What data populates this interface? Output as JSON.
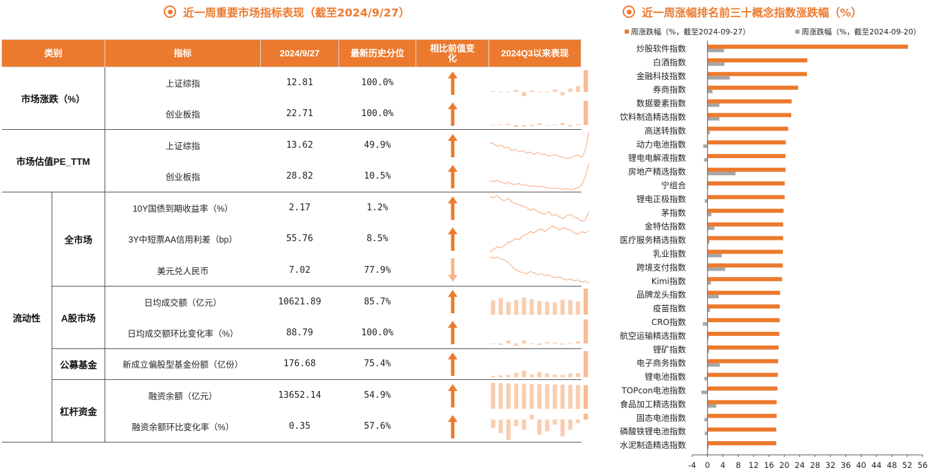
{
  "left_panel": {
    "title": "近一周重要市场指标表现（截至2024/9/27）",
    "headers": [
      "类别",
      "指标",
      "2024/9/27",
      "最新历史分位",
      "相比前值变化",
      "2024Q3以来表现"
    ],
    "groups": [
      {
        "category": "市场涨跌（%）",
        "subcategory": "",
        "rows": [
          {
            "indicator": "上证综指",
            "value": "12.81",
            "percentile": "100.0%",
            "change": "up"
          },
          {
            "indicator": "创业板指",
            "value": "22.71",
            "percentile": "100.0%",
            "change": "up"
          }
        ]
      },
      {
        "category": "市场估值PE_TTM",
        "subcategory": "",
        "rows": [
          {
            "indicator": "上证综指",
            "value": "13.62",
            "percentile": "49.9%",
            "change": "up"
          },
          {
            "indicator": "创业板指",
            "value": "28.82",
            "percentile": "10.5%",
            "change": "up"
          }
        ]
      },
      {
        "category": "流动性",
        "subcategory": "全市场",
        "rows": [
          {
            "indicator": "10Y国债到期收益率（%）",
            "value": "2.17",
            "percentile": "1.2%",
            "change": "up"
          },
          {
            "indicator": "3Y中短票AA信用利差（bp）",
            "value": "55.76",
            "percentile": "8.5%",
            "change": "up"
          },
          {
            "indicator": "美元兑人民币",
            "value": "7.02",
            "percentile": "77.9%",
            "change": "down"
          }
        ]
      },
      {
        "category": "流动性",
        "subcategory": "A股市场",
        "rows": [
          {
            "indicator": "日均成交额（亿元）",
            "value": "10621.89",
            "percentile": "85.7%",
            "change": "up"
          },
          {
            "indicator": "日均成交额环比变化率（%）",
            "value": "88.79",
            "percentile": "100.0%",
            "change": "up"
          }
        ]
      },
      {
        "category": "流动性",
        "subcategory": "公募基金",
        "rows": [
          {
            "indicator": "新成立偏股型基金份额（亿份）",
            "value": "176.68",
            "percentile": "75.4%",
            "change": "up"
          }
        ]
      },
      {
        "category": "流动性",
        "subcategory": "杠杆资金",
        "rows": [
          {
            "indicator": "融资余额（亿元）",
            "value": "13652.14",
            "percentile": "54.9%",
            "change": "up"
          },
          {
            "indicator": "融资余额环比变化率（%）",
            "value": "0.35",
            "percentile": "57.6%",
            "change": "up"
          }
        ]
      }
    ],
    "sparklines": [
      {
        "kind": "bar",
        "values": [
          0.5,
          0.2,
          -0.3,
          1.2,
          -2.5,
          0.8,
          0.3,
          -0.4,
          1.5,
          -2.0,
          2.0,
          3.5,
          12.81
        ]
      },
      {
        "kind": "bar",
        "values": [
          0.3,
          0.5,
          1.0,
          -2.0,
          -1.5,
          -1.0,
          1.5,
          -0.5,
          0.5,
          2.0,
          -1.5,
          1.0,
          22.71
        ]
      },
      {
        "kind": "line",
        "values": [
          12.9,
          12.8,
          12.6,
          12.7,
          12.5,
          12.55,
          12.3,
          12.4,
          12.2,
          12.3,
          12.1,
          12.2,
          12.0,
          12.15,
          12.0,
          12.05,
          11.9,
          11.95,
          12.0,
          11.85,
          11.8,
          11.7,
          11.75,
          11.9,
          12.0,
          11.8,
          12.3,
          13.62
        ]
      },
      {
        "kind": "line",
        "values": [
          24.5,
          24.3,
          24.6,
          24.2,
          23.9,
          24.1,
          23.7,
          23.6,
          23.8,
          23.4,
          23.5,
          23.1,
          23.3,
          23.0,
          23.2,
          22.9,
          22.8,
          22.6,
          22.7,
          22.5,
          22.4,
          22.6,
          22.3,
          22.5,
          22.8,
          23.4,
          25.5,
          28.82
        ]
      },
      {
        "kind": "line",
        "values": [
          2.28,
          2.27,
          2.29,
          2.26,
          2.25,
          2.27,
          2.24,
          2.23,
          2.22,
          2.21,
          2.2,
          2.18,
          2.19,
          2.17,
          2.16,
          2.15,
          2.17,
          2.14,
          2.15,
          2.13,
          2.12,
          2.14,
          2.15,
          2.13,
          2.12,
          2.1,
          2.11,
          2.17
        ]
      },
      {
        "kind": "line",
        "values": [
          40,
          42,
          44,
          43,
          45,
          47,
          48,
          50,
          49,
          52,
          53,
          55,
          54,
          56,
          57,
          55,
          57,
          59,
          58,
          56,
          58,
          57,
          56,
          54,
          53,
          55,
          54,
          55.76
        ]
      },
      {
        "kind": "line",
        "values": [
          7.27,
          7.26,
          7.27,
          7.25,
          7.24,
          7.22,
          7.18,
          7.15,
          7.13,
          7.12,
          7.11,
          7.13,
          7.12,
          7.1,
          7.11,
          7.09,
          7.1,
          7.08,
          7.07,
          7.08,
          7.06,
          7.05,
          7.06,
          7.04,
          7.05,
          7.03,
          7.04,
          7.02
        ]
      },
      {
        "kind": "bar",
        "values": [
          5800,
          6800,
          5200,
          6000,
          7000,
          6300,
          5600,
          5300,
          5000,
          6100,
          5900,
          5400,
          10621.89
        ]
      },
      {
        "kind": "bar",
        "values": [
          0.0,
          -5,
          10,
          -8,
          12,
          -3,
          -6,
          5,
          4,
          -4,
          3,
          8,
          88.79
        ]
      },
      {
        "kind": "bar",
        "values": [
          8,
          12,
          15,
          30,
          45,
          20,
          35,
          25,
          18,
          15,
          25,
          28,
          176.68
        ]
      },
      {
        "kind": "bar",
        "values": [
          15000,
          14800,
          14600,
          14500,
          14400,
          14300,
          14200,
          14100,
          14000,
          13900,
          13800,
          13750,
          13652.14
        ]
      },
      {
        "kind": "bar",
        "values": [
          -0.5,
          -0.8,
          -1.2,
          -0.4,
          -0.6,
          0.3,
          -0.9,
          -0.7,
          -0.3,
          -1.0,
          -0.6,
          -0.2,
          0.35
        ]
      }
    ]
  },
  "chart_data": {
    "type": "bar",
    "orientation": "horizontal",
    "title": "近一周涨幅排名前三十概念指数涨跌幅（%）",
    "categories": [
      "炒股软件指数",
      "白酒指数",
      "金融科技指数",
      "券商指数",
      "数据要素指数",
      "饮料制造精选指数",
      "高送转指数",
      "动力电池指数",
      "锂电电解液指数",
      "房地产精选指数",
      "宁组合",
      "锂电正极指数",
      "茅指数",
      "金特估指数",
      "医疗服务精选指数",
      "乳业指数",
      "跨境支付指数",
      "Kimi指数",
      "品牌龙头指数",
      "疫苗指数",
      "CRO指数",
      "航空运输精选指数",
      "锂矿指数",
      "电子商务指数",
      "锂电池指数",
      "TOPcon电池指数",
      "食品加工精选指数",
      "固态电池指数",
      "磷酸铁锂电池指数",
      "水泥制造精选指数"
    ],
    "series": [
      {
        "name": "周涨跌幅（%，截至2024-09-27）",
        "color": "#ec7a2e",
        "values": [
          52.2,
          26.0,
          25.9,
          23.6,
          21.9,
          21.8,
          21.0,
          20.4,
          20.3,
          20.3,
          20.1,
          20.1,
          19.8,
          19.7,
          19.7,
          19.6,
          19.6,
          19.4,
          18.9,
          18.8,
          18.8,
          18.7,
          18.5,
          18.4,
          18.3,
          18.2,
          18.0,
          18.0,
          17.9,
          17.9
        ]
      },
      {
        "name": "周涨跌幅（%，截至2024-09-20）",
        "color": "#a6a6a6",
        "values": [
          4.3,
          4.4,
          5.8,
          1.3,
          3.1,
          3.1,
          0.6,
          -1.1,
          -0.9,
          7.3,
          0.2,
          -0.7,
          1.0,
          1.8,
          0.5,
          3.7,
          4.6,
          0.9,
          2.9,
          0.6,
          -1.2,
          0.3,
          0.4,
          3.2,
          -0.8,
          -1.6,
          2.3,
          -0.8,
          -0.7,
          0.3
        ]
      }
    ],
    "xlim": [
      -4,
      56
    ],
    "xticks": [
      "-4",
      "0",
      "4",
      "8",
      "12",
      "16",
      "20",
      "24",
      "28",
      "32",
      "36",
      "40",
      "44",
      "48",
      "52",
      "56"
    ],
    "legend_position": "top",
    "grid": false
  }
}
